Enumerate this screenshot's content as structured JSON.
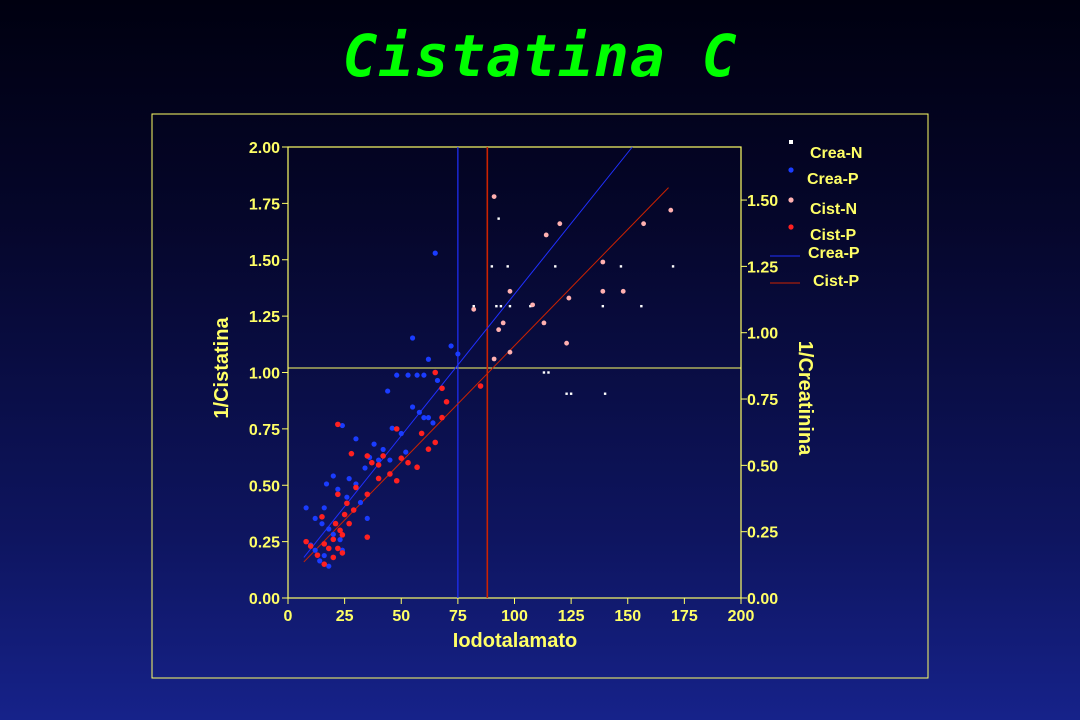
{
  "title": "Cistatina C",
  "colors": {
    "axis": "#ffff66",
    "crea_n": "#ffffff",
    "crea_p": "#1a3cff",
    "cist_n": "#ffb0b0",
    "cist_p": "#ff2020",
    "crea_line": "#2030ff",
    "cist_line": "#cc2200"
  },
  "chart_data": {
    "type": "scatter",
    "title": "Cistatina C",
    "xlabel": "Iodotalamato",
    "ylabel": "1/Cistatina",
    "y2label": "1/Creatinina",
    "xlim": [
      0,
      200
    ],
    "ylim": [
      0,
      2.0
    ],
    "y2lim": [
      0,
      1.7
    ],
    "x_ticks": [
      "0",
      "25",
      "50",
      "75",
      "100",
      "125",
      "150",
      "175",
      "200"
    ],
    "y_ticks": [
      "0.00",
      "0.25",
      "0.50",
      "0.75",
      "1.00",
      "1.25",
      "1.50",
      "1.75",
      "2.00"
    ],
    "y2_ticks": [
      "0.00",
      "0.25",
      "0.50",
      "0.75",
      "1.00",
      "1.25",
      "1.50"
    ],
    "legend": [
      "Crea-N",
      "Crea-P",
      "Cist-N",
      "Cist-P",
      "Crea-P",
      "Cist-P"
    ],
    "reference_lines": {
      "horizontal_y": 1.02,
      "vertical_crea_x": 75,
      "vertical_cist_x": 88
    },
    "series": [
      {
        "name": "Crea-N",
        "axis": "y2",
        "points": [
          [
            93,
            1.43
          ],
          [
            90,
            1.25
          ],
          [
            97,
            1.25
          ],
          [
            118,
            1.25
          ],
          [
            147,
            1.25
          ],
          [
            170,
            1.25
          ],
          [
            82,
            1.1
          ],
          [
            92,
            1.1
          ],
          [
            94,
            1.1
          ],
          [
            98,
            1.1
          ],
          [
            107,
            1.1
          ],
          [
            139,
            1.1
          ],
          [
            156,
            1.1
          ],
          [
            113,
            0.85
          ],
          [
            115,
            0.85
          ],
          [
            123,
            0.77
          ],
          [
            125,
            0.77
          ],
          [
            140,
            0.77
          ]
        ]
      },
      {
        "name": "Crea-P",
        "axis": "y2",
        "points": [
          [
            65,
            1.3
          ],
          [
            55,
            0.98
          ],
          [
            72,
            0.95
          ],
          [
            75,
            0.92
          ],
          [
            62,
            0.9
          ],
          [
            48,
            0.84
          ],
          [
            53,
            0.84
          ],
          [
            57,
            0.84
          ],
          [
            60,
            0.84
          ],
          [
            66,
            0.82
          ],
          [
            44,
            0.78
          ],
          [
            55,
            0.72
          ],
          [
            58,
            0.7
          ],
          [
            60,
            0.68
          ],
          [
            62,
            0.68
          ],
          [
            64,
            0.66
          ],
          [
            46,
            0.64
          ],
          [
            50,
            0.62
          ],
          [
            24,
            0.65
          ],
          [
            30,
            0.6
          ],
          [
            38,
            0.58
          ],
          [
            42,
            0.56
          ],
          [
            52,
            0.55
          ],
          [
            36,
            0.53
          ],
          [
            40,
            0.52
          ],
          [
            45,
            0.52
          ],
          [
            34,
            0.49
          ],
          [
            27,
            0.45
          ],
          [
            30,
            0.43
          ],
          [
            20,
            0.46
          ],
          [
            17,
            0.43
          ],
          [
            22,
            0.41
          ],
          [
            26,
            0.38
          ],
          [
            32,
            0.36
          ],
          [
            16,
            0.34
          ],
          [
            35,
            0.3
          ],
          [
            8,
            0.34
          ],
          [
            12,
            0.3
          ],
          [
            15,
            0.28
          ],
          [
            18,
            0.26
          ],
          [
            20,
            0.24
          ],
          [
            23,
            0.22
          ],
          [
            10,
            0.2
          ],
          [
            12,
            0.18
          ],
          [
            16,
            0.16
          ],
          [
            24,
            0.18
          ],
          [
            14,
            0.14
          ],
          [
            18,
            0.12
          ]
        ]
      },
      {
        "name": "Cist-N",
        "axis": "y",
        "points": [
          [
            91,
            1.78
          ],
          [
            120,
            1.66
          ],
          [
            114,
            1.61
          ],
          [
            169,
            1.72
          ],
          [
            157,
            1.66
          ],
          [
            139,
            1.49
          ],
          [
            98,
            1.36
          ],
          [
            139,
            1.36
          ],
          [
            148,
            1.36
          ],
          [
            124,
            1.33
          ],
          [
            108,
            1.3
          ],
          [
            82,
            1.28
          ],
          [
            95,
            1.22
          ],
          [
            113,
            1.22
          ],
          [
            93,
            1.19
          ],
          [
            123,
            1.13
          ],
          [
            98,
            1.09
          ],
          [
            91,
            1.06
          ]
        ]
      },
      {
        "name": "Cist-P",
        "axis": "y",
        "points": [
          [
            65,
            1.0
          ],
          [
            85,
            0.94
          ],
          [
            68,
            0.93
          ],
          [
            70,
            0.87
          ],
          [
            68,
            0.8
          ],
          [
            59,
            0.73
          ],
          [
            48,
            0.75
          ],
          [
            22,
            0.77
          ],
          [
            35,
            0.63
          ],
          [
            42,
            0.63
          ],
          [
            28,
            0.64
          ],
          [
            65,
            0.69
          ],
          [
            62,
            0.66
          ],
          [
            50,
            0.62
          ],
          [
            53,
            0.6
          ],
          [
            37,
            0.6
          ],
          [
            40,
            0.59
          ],
          [
            57,
            0.58
          ],
          [
            45,
            0.55
          ],
          [
            40,
            0.53
          ],
          [
            48,
            0.52
          ],
          [
            30,
            0.49
          ],
          [
            35,
            0.46
          ],
          [
            22,
            0.46
          ],
          [
            26,
            0.42
          ],
          [
            29,
            0.39
          ],
          [
            25,
            0.37
          ],
          [
            15,
            0.36
          ],
          [
            21,
            0.33
          ],
          [
            27,
            0.33
          ],
          [
            23,
            0.3
          ],
          [
            24,
            0.28
          ],
          [
            20,
            0.26
          ],
          [
            35,
            0.27
          ],
          [
            8,
            0.25
          ],
          [
            10,
            0.23
          ],
          [
            16,
            0.24
          ],
          [
            18,
            0.22
          ],
          [
            22,
            0.22
          ],
          [
            13,
            0.19
          ],
          [
            24,
            0.2
          ],
          [
            20,
            0.18
          ],
          [
            16,
            0.15
          ]
        ]
      }
    ],
    "fit_lines": [
      {
        "name": "Crea-P",
        "axis": "y",
        "from": [
          7,
          0.18
        ],
        "to": [
          152,
          2.0
        ]
      },
      {
        "name": "Cist-P",
        "axis": "y",
        "from": [
          7,
          0.16
        ],
        "to": [
          168,
          1.82
        ]
      }
    ]
  }
}
